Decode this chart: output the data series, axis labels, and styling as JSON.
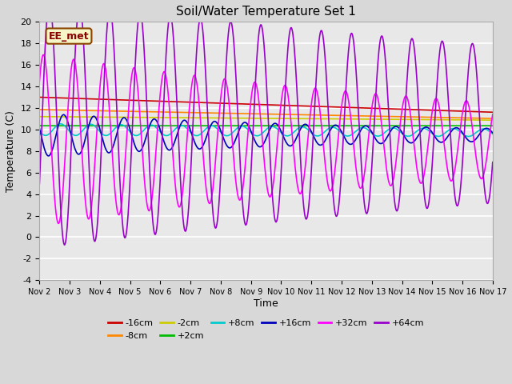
{
  "title": "Soil/Water Temperature Set 1",
  "xlabel": "Time",
  "ylabel": "Temperature (C)",
  "ylim": [
    -4,
    20
  ],
  "xlim": [
    0,
    15
  ],
  "xtick_labels": [
    "Nov 2",
    "Nov 3",
    "Nov 4",
    "Nov 5",
    "Nov 6",
    "Nov 7",
    "Nov 8",
    "Nov 9",
    "Nov 10",
    "Nov 11",
    "Nov 12",
    "Nov 13",
    "Nov 14",
    "Nov 15",
    "Nov 16",
    "Nov 17"
  ],
  "ytick_values": [
    -4,
    -2,
    0,
    2,
    4,
    6,
    8,
    10,
    12,
    14,
    16,
    18,
    20
  ],
  "fig_bg_color": "#d8d8d8",
  "plot_bg_color": "#e8e8e8",
  "watermark": "EE_met",
  "series": [
    {
      "label": "-16cm",
      "color": "#cc0000",
      "base": 13.0,
      "slope": -0.093,
      "amp": 0.0,
      "phase": 0.0,
      "period": 1.0,
      "damping": 0.0
    },
    {
      "label": "-8cm",
      "color": "#ff8800",
      "base": 11.85,
      "slope": -0.055,
      "amp": 0.0,
      "phase": 0.0,
      "period": 1.0,
      "damping": 0.0
    },
    {
      "label": "-2cm",
      "color": "#cccc00",
      "base": 11.2,
      "slope": -0.022,
      "amp": 0.0,
      "phase": 0.0,
      "period": 1.0,
      "damping": 0.0
    },
    {
      "label": "+2cm",
      "color": "#00bb00",
      "base": 10.35,
      "slope": 0.0,
      "amp": 0.0,
      "phase": 0.0,
      "period": 1.0,
      "damping": 0.0
    },
    {
      "label": "+8cm",
      "color": "#00cccc",
      "base": 10.0,
      "slope": -0.02,
      "amp": 0.55,
      "phase": 0.55,
      "period": 1.0,
      "damping": 0.03
    },
    {
      "label": "+16cm",
      "color": "#0000bb",
      "base": 9.5,
      "slope": 0.0,
      "amp": 2.0,
      "phase": 0.45,
      "period": 1.0,
      "damping": 0.08
    },
    {
      "label": "+32cm",
      "color": "#ff00ff",
      "base": 9.0,
      "slope": 0.0,
      "amp": 8.0,
      "phase": 0.12,
      "period": 1.0,
      "damping": 0.055
    },
    {
      "label": "+64cm",
      "color": "#9900cc",
      "base": 10.5,
      "slope": 0.0,
      "amp": 11.5,
      "phase": -0.08,
      "period": 1.0,
      "damping": 0.03
    }
  ],
  "legend_order": [
    "-16cm",
    "-8cm",
    "-2cm",
    "+2cm",
    "+8cm",
    "+16cm",
    "+32cm",
    "+64cm"
  ]
}
